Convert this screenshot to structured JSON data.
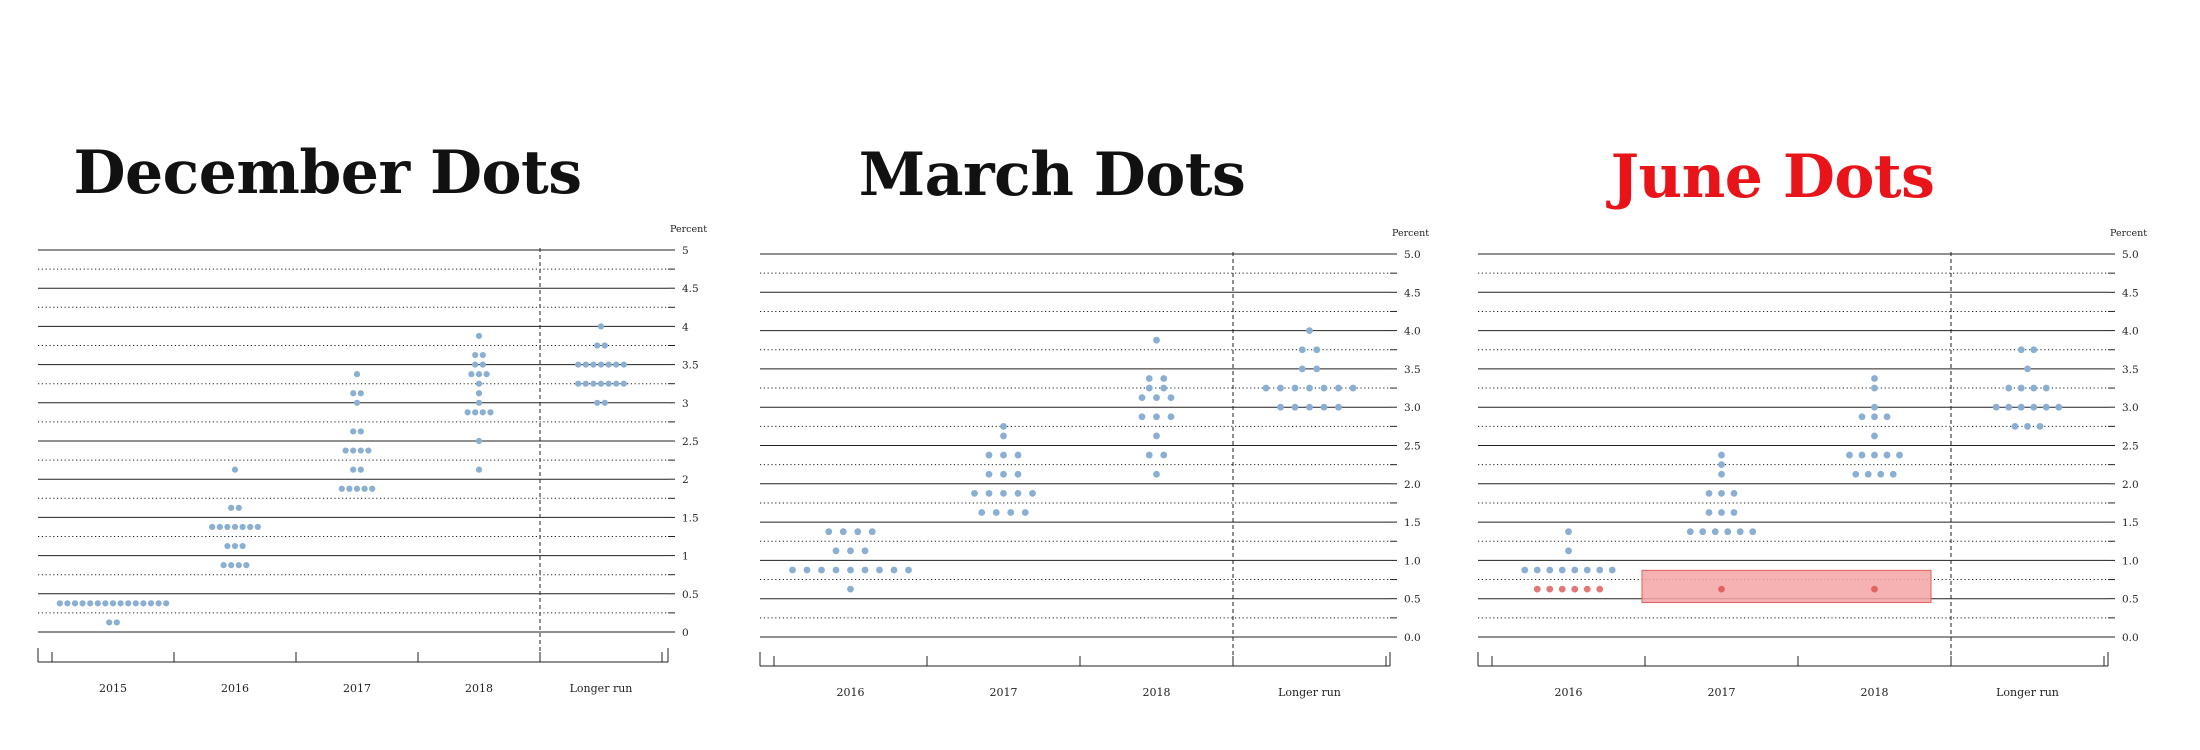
{
  "colors": {
    "dot": "#8AAFD3",
    "highlight_fill": "#F4A5A5",
    "highlight_stroke": "#E06060",
    "red_title": "#E8141A",
    "black_title": "#111111"
  },
  "chart_data": [
    {
      "type": "scatter",
      "title": "December Dots",
      "title_color": "black",
      "unit_label": "Percent",
      "categories": [
        "2015",
        "2016",
        "2017",
        "2018",
        "Longer run"
      ],
      "ylim": [
        0,
        5
      ],
      "yticks": [
        "0",
        "0.5",
        "1",
        "1.5",
        "2",
        "2.5",
        "3",
        "3.5",
        "4",
        "4.5",
        "5"
      ],
      "grid": true,
      "longer_run_divider": true,
      "dots": [
        {
          "category": "2015",
          "y": 0.125,
          "count": 2
        },
        {
          "category": "2015",
          "y": 0.375,
          "count": 15
        },
        {
          "category": "2016",
          "y": 0.875,
          "count": 4
        },
        {
          "category": "2016",
          "y": 1.125,
          "count": 3
        },
        {
          "category": "2016",
          "y": 1.375,
          "count": 7
        },
        {
          "category": "2016",
          "y": 1.625,
          "count": 2
        },
        {
          "category": "2016",
          "y": 2.125,
          "count": 1
        },
        {
          "category": "2017",
          "y": 1.875,
          "count": 5
        },
        {
          "category": "2017",
          "y": 2.125,
          "count": 2
        },
        {
          "category": "2017",
          "y": 2.375,
          "count": 4
        },
        {
          "category": "2017",
          "y": 2.625,
          "count": 2
        },
        {
          "category": "2017",
          "y": 3.0,
          "count": 1
        },
        {
          "category": "2017",
          "y": 3.125,
          "count": 2
        },
        {
          "category": "2017",
          "y": 3.375,
          "count": 1
        },
        {
          "category": "2018",
          "y": 2.125,
          "count": 1
        },
        {
          "category": "2018",
          "y": 2.5,
          "count": 1
        },
        {
          "category": "2018",
          "y": 2.875,
          "count": 4
        },
        {
          "category": "2018",
          "y": 3.0,
          "count": 1
        },
        {
          "category": "2018",
          "y": 3.125,
          "count": 1
        },
        {
          "category": "2018",
          "y": 3.25,
          "count": 1
        },
        {
          "category": "2018",
          "y": 3.375,
          "count": 3
        },
        {
          "category": "2018",
          "y": 3.5,
          "count": 2
        },
        {
          "category": "2018",
          "y": 3.625,
          "count": 2
        },
        {
          "category": "2018",
          "y": 3.875,
          "count": 1
        },
        {
          "category": "Longer run",
          "y": 3.0,
          "count": 2
        },
        {
          "category": "Longer run",
          "y": 3.25,
          "count": 7
        },
        {
          "category": "Longer run",
          "y": 3.5,
          "count": 7
        },
        {
          "category": "Longer run",
          "y": 3.75,
          "count": 2
        },
        {
          "category": "Longer run",
          "y": 4.0,
          "count": 1
        }
      ]
    },
    {
      "type": "scatter",
      "title": "March Dots",
      "title_color": "black",
      "unit_label": "Percent",
      "categories": [
        "2016",
        "2017",
        "2018",
        "Longer run"
      ],
      "ylim": [
        0,
        5
      ],
      "yticks": [
        "0.0",
        "0.5",
        "1.0",
        "1.5",
        "2.0",
        "2.5",
        "3.0",
        "3.5",
        "4.0",
        "4.5",
        "5.0"
      ],
      "grid": true,
      "longer_run_divider": true,
      "dots": [
        {
          "category": "2016",
          "y": 0.625,
          "count": 1
        },
        {
          "category": "2016",
          "y": 0.875,
          "count": 9
        },
        {
          "category": "2016",
          "y": 1.125,
          "count": 3
        },
        {
          "category": "2016",
          "y": 1.375,
          "count": 4
        },
        {
          "category": "2017",
          "y": 1.625,
          "count": 4
        },
        {
          "category": "2017",
          "y": 1.875,
          "count": 5
        },
        {
          "category": "2017",
          "y": 2.125,
          "count": 3
        },
        {
          "category": "2017",
          "y": 2.375,
          "count": 3
        },
        {
          "category": "2017",
          "y": 2.625,
          "count": 1
        },
        {
          "category": "2017",
          "y": 2.75,
          "count": 1
        },
        {
          "category": "2018",
          "y": 2.125,
          "count": 1
        },
        {
          "category": "2018",
          "y": 2.375,
          "count": 2
        },
        {
          "category": "2018",
          "y": 2.625,
          "count": 1
        },
        {
          "category": "2018",
          "y": 2.875,
          "count": 3
        },
        {
          "category": "2018",
          "y": 3.125,
          "count": 3
        },
        {
          "category": "2018",
          "y": 3.25,
          "count": 2
        },
        {
          "category": "2018",
          "y": 3.375,
          "count": 2
        },
        {
          "category": "2018",
          "y": 3.875,
          "count": 1
        },
        {
          "category": "Longer run",
          "y": 3.0,
          "count": 5
        },
        {
          "category": "Longer run",
          "y": 3.25,
          "count": 7
        },
        {
          "category": "Longer run",
          "y": 3.5,
          "count": 2
        },
        {
          "category": "Longer run",
          "y": 3.75,
          "count": 2
        },
        {
          "category": "Longer run",
          "y": 4.0,
          "count": 1
        }
      ]
    },
    {
      "type": "scatter",
      "title": "June Dots",
      "title_color": "red",
      "unit_label": "Percent",
      "categories": [
        "2016",
        "2017",
        "2018",
        "Longer run"
      ],
      "ylim": [
        0,
        5
      ],
      "yticks": [
        "0.0",
        "0.5",
        "1.0",
        "1.5",
        "2.0",
        "2.5",
        "3.0",
        "3.5",
        "4.0",
        "4.5",
        "5.0"
      ],
      "grid": true,
      "longer_run_divider": true,
      "highlight": {
        "from_category": "2017",
        "to_category": "2018",
        "y_range": [
          0.45,
          0.87
        ]
      },
      "dots": [
        {
          "category": "2016",
          "y": 0.625,
          "count": 6
        },
        {
          "category": "2016",
          "y": 0.875,
          "count": 8
        },
        {
          "category": "2016",
          "y": 1.125,
          "count": 1
        },
        {
          "category": "2016",
          "y": 1.375,
          "count": 1
        },
        {
          "category": "2017",
          "y": 0.625,
          "count": 1
        },
        {
          "category": "2017",
          "y": 1.375,
          "count": 6
        },
        {
          "category": "2017",
          "y": 1.625,
          "count": 3
        },
        {
          "category": "2017",
          "y": 1.875,
          "count": 3
        },
        {
          "category": "2017",
          "y": 2.125,
          "count": 1
        },
        {
          "category": "2017",
          "y": 2.25,
          "count": 1
        },
        {
          "category": "2017",
          "y": 2.375,
          "count": 1
        },
        {
          "category": "2018",
          "y": 0.625,
          "count": 1
        },
        {
          "category": "2018",
          "y": 2.125,
          "count": 4
        },
        {
          "category": "2018",
          "y": 2.375,
          "count": 5
        },
        {
          "category": "2018",
          "y": 2.625,
          "count": 1
        },
        {
          "category": "2018",
          "y": 2.875,
          "count": 3
        },
        {
          "category": "2018",
          "y": 3.0,
          "count": 1
        },
        {
          "category": "2018",
          "y": 3.25,
          "count": 1
        },
        {
          "category": "2018",
          "y": 3.375,
          "count": 1
        },
        {
          "category": "Longer run",
          "y": 2.75,
          "count": 3
        },
        {
          "category": "Longer run",
          "y": 3.0,
          "count": 6
        },
        {
          "category": "Longer run",
          "y": 3.25,
          "count": 4
        },
        {
          "category": "Longer run",
          "y": 3.5,
          "count": 1
        },
        {
          "category": "Longer run",
          "y": 3.75,
          "count": 2
        }
      ]
    }
  ]
}
